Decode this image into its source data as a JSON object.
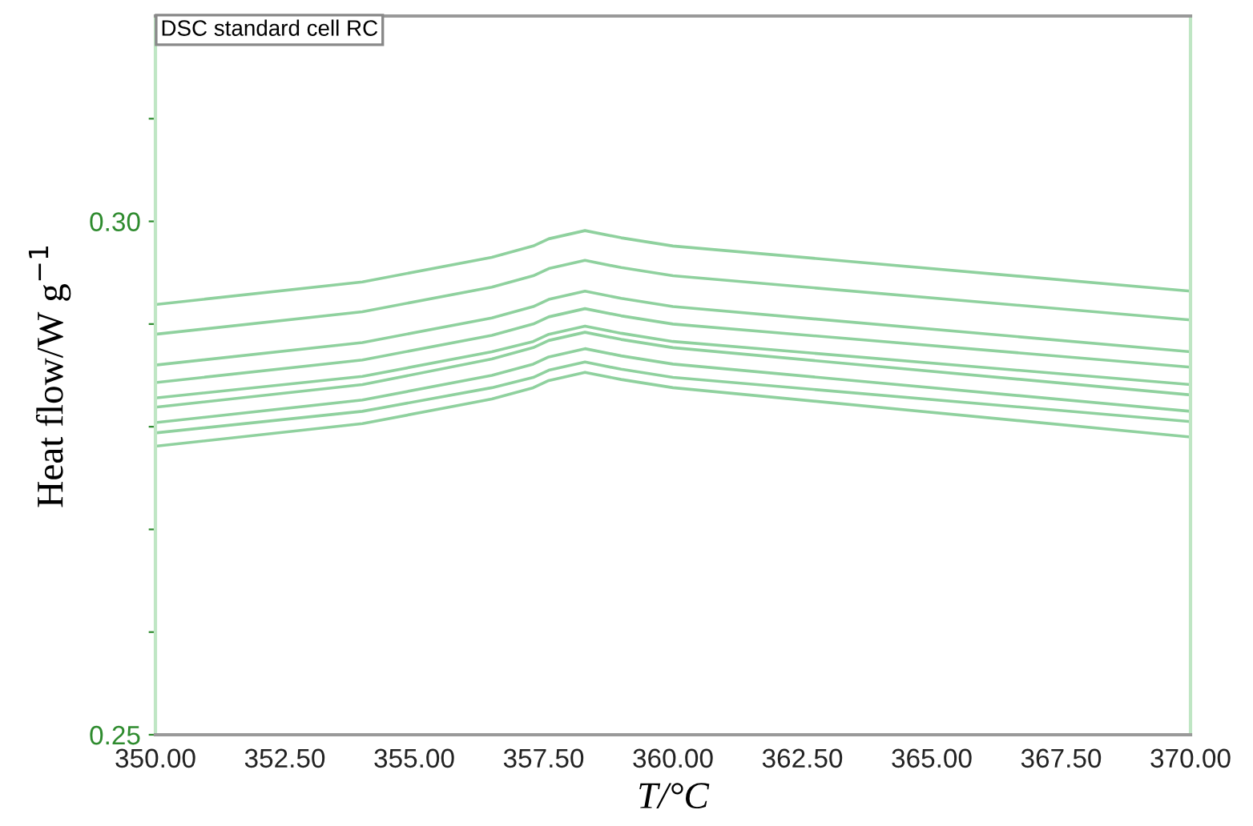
{
  "chart_data": {
    "type": "line",
    "xlabel": "T/°C",
    "ylabel": "Heat flow/W g$^{−1}$",
    "annotations": [
      "DSC standard cell RC"
    ],
    "x": [
      350,
      354,
      356.5,
      357.3,
      357.6,
      358.3,
      359,
      360,
      370
    ],
    "series": [
      {
        "color": "#8fd19e",
        "values": [
          0.2919,
          0.2941,
          0.2965,
          0.2976,
          0.2983,
          0.2991,
          0.2984,
          0.2976,
          0.2932
        ]
      },
      {
        "color": "#8fd19e",
        "values": [
          0.289,
          0.2912,
          0.2936,
          0.2947,
          0.2954,
          0.2962,
          0.2955,
          0.2947,
          0.2904
        ]
      },
      {
        "color": "#8fd19e",
        "values": [
          0.286,
          0.2882,
          0.2906,
          0.2917,
          0.2924,
          0.2932,
          0.2925,
          0.2917,
          0.2873
        ]
      },
      {
        "color": "#8fd19e",
        "values": [
          0.2843,
          0.2865,
          0.2889,
          0.29,
          0.2907,
          0.2915,
          0.2908,
          0.29,
          0.2858
        ]
      },
      {
        "color": "#8fd19e",
        "values": [
          0.2828,
          0.2849,
          0.2873,
          0.2883,
          0.289,
          0.2898,
          0.2891,
          0.2883,
          0.2841
        ]
      },
      {
        "color": "#8fd19e",
        "values": [
          0.2819,
          0.2841,
          0.2866,
          0.2877,
          0.2884,
          0.2892,
          0.2885,
          0.2877,
          0.2831
        ]
      },
      {
        "color": "#8fd19e",
        "values": [
          0.2804,
          0.2826,
          0.285,
          0.2861,
          0.2868,
          0.2876,
          0.2869,
          0.2861,
          0.2815
        ]
      },
      {
        "color": "#8fd19e",
        "values": [
          0.2794,
          0.2815,
          0.2838,
          0.2848,
          0.2855,
          0.2863,
          0.2856,
          0.2848,
          0.2805
        ]
      },
      {
        "color": "#8fd19e",
        "values": [
          0.2781,
          0.2803,
          0.2827,
          0.2838,
          0.2845,
          0.2853,
          0.2846,
          0.2838,
          0.279
        ]
      }
    ],
    "xlim": [
      350,
      370
    ],
    "xticks": [
      {
        "value": 350,
        "label": "350.00"
      },
      {
        "value": 352.5,
        "label": "352.50"
      },
      {
        "value": 355,
        "label": "355.00"
      },
      {
        "value": 357.5,
        "label": "357.50"
      },
      {
        "value": 360,
        "label": "360.00"
      },
      {
        "value": 362.5,
        "label": "362.50"
      },
      {
        "value": 365,
        "label": "365.00"
      },
      {
        "value": 367.5,
        "label": "367.50"
      },
      {
        "value": 370,
        "label": "370.00"
      }
    ],
    "ylim": [
      0.25,
      0.32
    ],
    "yticks": [
      {
        "value": 0.25,
        "label": "0.25"
      },
      {
        "value": 0.26,
        "label": null
      },
      {
        "value": 0.27,
        "label": null
      },
      {
        "value": 0.28,
        "label": null
      },
      {
        "value": 0.29,
        "label": null
      },
      {
        "value": 0.3,
        "label": "0.30"
      },
      {
        "value": 0.31,
        "label": null
      }
    ],
    "grid": false,
    "marker": "none",
    "line_style": "solid"
  }
}
